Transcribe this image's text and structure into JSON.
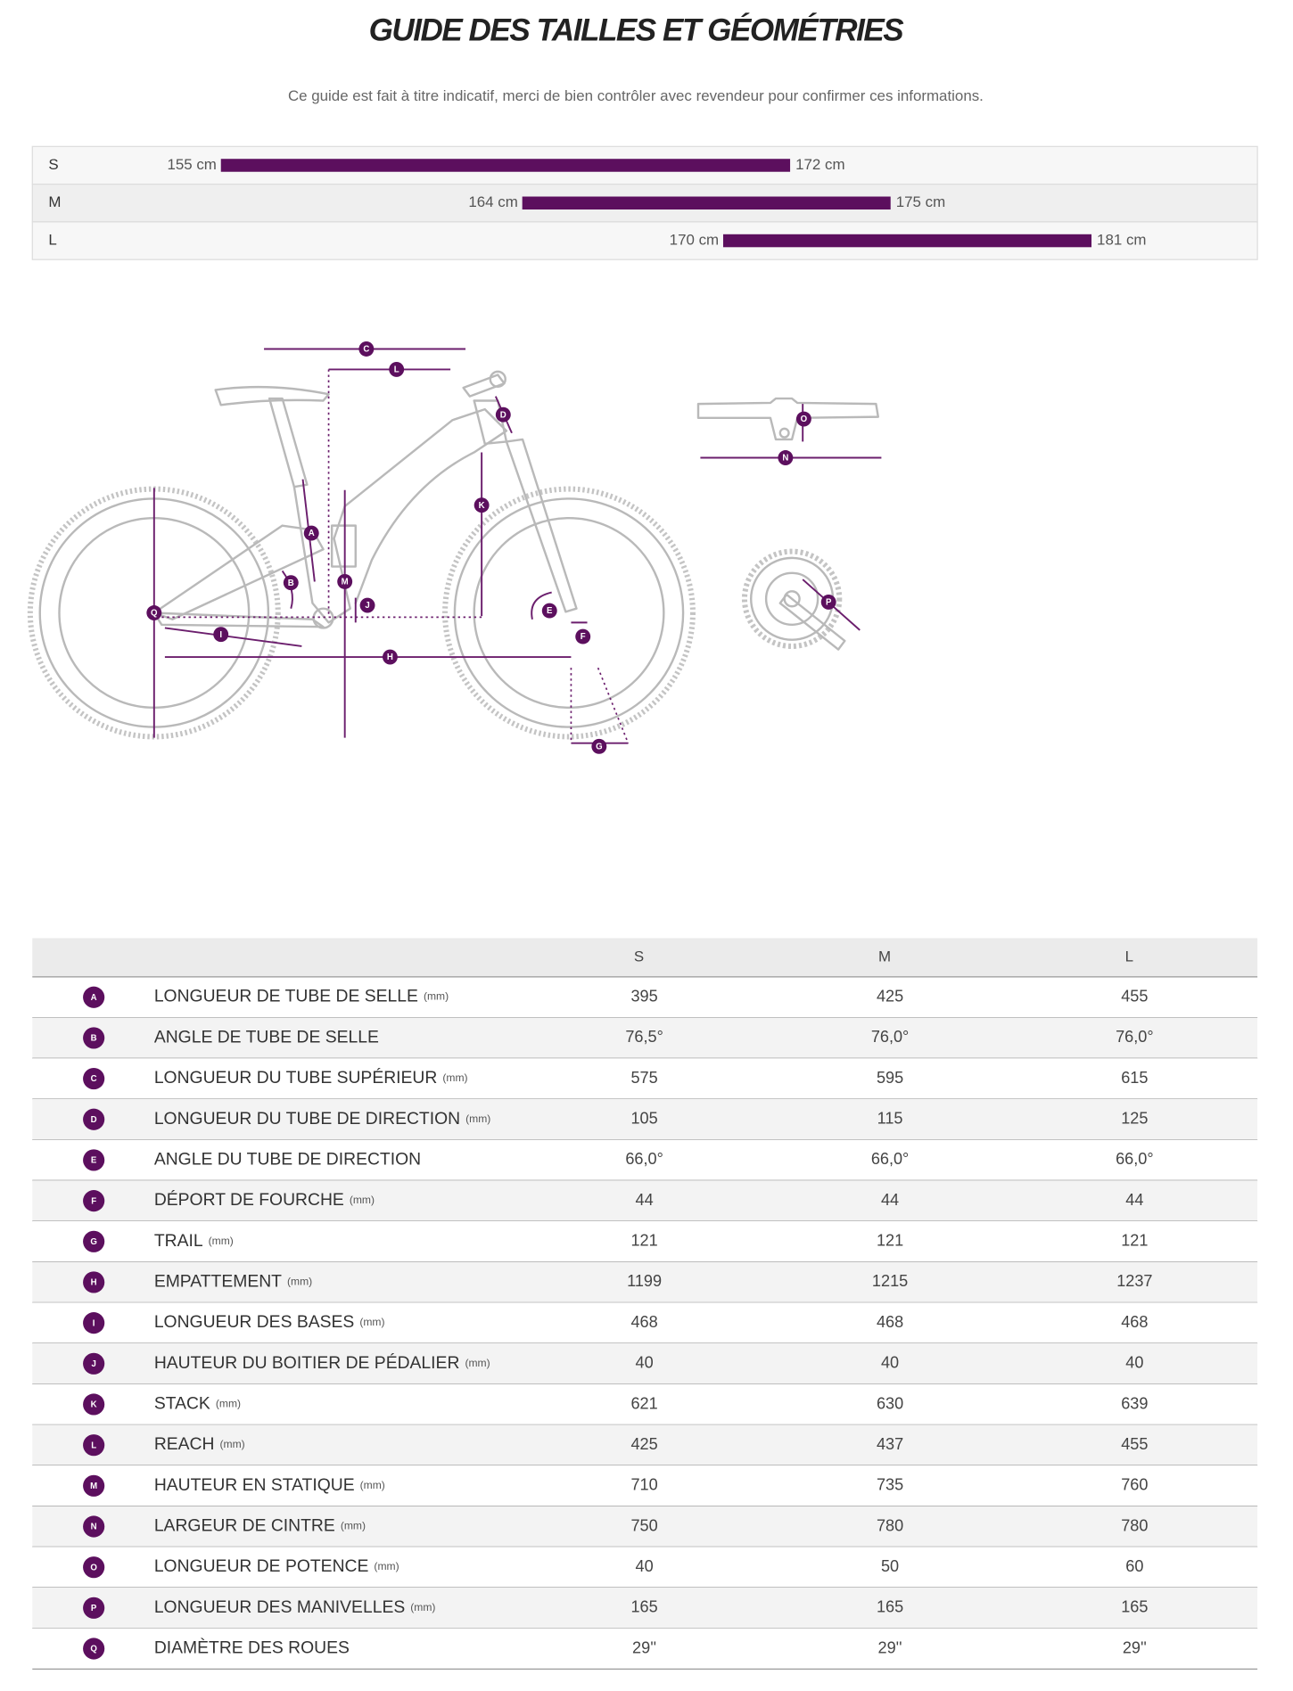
{
  "header": {
    "title": "GUIDE DES TAILLES ET GÉOMÉTRIES",
    "subtitle": "Ce guide est fait à titre indicatif, merci de bien contrôler avec revendeur pour confirmer ces informations."
  },
  "size_ranges": [
    {
      "size": "S",
      "min": {
        "value": 155,
        "label": "155 cm"
      },
      "max": {
        "value": 172,
        "label": "172 cm"
      }
    },
    {
      "size": "M",
      "min": {
        "value": 164,
        "label": "164 cm"
      },
      "max": {
        "value": 175,
        "label": "175 cm"
      }
    },
    {
      "size": "L",
      "min": {
        "value": 170,
        "label": "170 cm"
      },
      "max": {
        "value": 181,
        "label": "181 cm"
      }
    }
  ],
  "geometry": {
    "header": [
      "S",
      "M",
      "L"
    ],
    "rows": [
      {
        "letter": "A",
        "label": "LONGUEUR DE TUBE DE SELLE",
        "unit": "(mm)",
        "values": [
          395,
          425,
          455
        ]
      },
      {
        "letter": "B",
        "label": "ANGLE DE TUBE DE SELLE",
        "values": [
          "76,5°",
          "76,0°",
          "76,0°"
        ]
      },
      {
        "letter": "C",
        "label": "LONGUEUR DU TUBE SUPÉRIEUR",
        "unit": "(mm)",
        "values": [
          575,
          595,
          615
        ]
      },
      {
        "letter": "D",
        "label": "LONGUEUR DU TUBE DE DIRECTION",
        "unit": "(mm)",
        "values": [
          105,
          115,
          125
        ]
      },
      {
        "letter": "E",
        "label": "ANGLE DU TUBE DE DIRECTION",
        "values": [
          "66,0°",
          "66,0°",
          "66,0°"
        ]
      },
      {
        "letter": "F",
        "label": "DÉPORT DE FOURCHE",
        "unit": "(mm)",
        "values": [
          44,
          44,
          44
        ]
      },
      {
        "letter": "G",
        "label": "TRAIL",
        "unit": "(mm)",
        "values": [
          121,
          121,
          121
        ]
      },
      {
        "letter": "H",
        "label": "EMPATTEMENT",
        "unit": "(mm)",
        "values": [
          1199,
          1215,
          1237
        ]
      },
      {
        "letter": "I",
        "label": "LONGUEUR DES BASES",
        "unit": "(mm)",
        "values": [
          468,
          468,
          468
        ]
      },
      {
        "letter": "J",
        "label": "HAUTEUR DU BOITIER DE PÉDALIER",
        "unit": "(mm)",
        "values": [
          40,
          40,
          40
        ]
      },
      {
        "letter": "K",
        "label": "STACK",
        "unit": "(mm)",
        "values": [
          621,
          630,
          639
        ]
      },
      {
        "letter": "L",
        "label": "REACH",
        "unit": "(mm)",
        "values": [
          425,
          437,
          455
        ]
      },
      {
        "letter": "M",
        "label": "HAUTEUR EN STATIQUE",
        "unit": "(mm)",
        "values": [
          710,
          735,
          760
        ]
      },
      {
        "letter": "N",
        "label": "LARGEUR DE CINTRE",
        "unit": "(mm)",
        "values": [
          750,
          780,
          780
        ]
      },
      {
        "letter": "O",
        "label": "LONGUEUR DE POTENCE",
        "unit": "(mm)",
        "values": [
          40,
          50,
          60
        ]
      },
      {
        "letter": "P",
        "label": "LONGUEUR DES MANIVELLES",
        "unit": "(mm)",
        "values": [
          165,
          165,
          165
        ]
      },
      {
        "letter": "Q",
        "label": "DIAMÈTRE DES ROUES",
        "values": [
          "29''",
          "29''",
          "29''"
        ]
      }
    ]
  }
}
